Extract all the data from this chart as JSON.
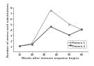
{
  "series": [
    {
      "label": "Patient 1",
      "x": [
        10,
        20,
        35,
        50,
        60
      ],
      "y": [
        1,
        1.5,
        7.5,
        5,
        4
      ],
      "marker": "o",
      "linestyle": "-",
      "color": "#aaaaaa",
      "markersize": 1.8,
      "linewidth": 0.7,
      "markerfacecolor": "#aaaaaa"
    },
    {
      "label": "Patient 2",
      "x": [
        10,
        20,
        35,
        50,
        60
      ],
      "y": [
        1,
        1.3,
        4.5,
        3,
        4
      ],
      "marker": "s",
      "linestyle": "-",
      "color": "#666666",
      "markersize": 1.8,
      "linewidth": 0.7,
      "markerfacecolor": "#666666"
    }
  ],
  "xlabel": "Weeks after immune response begins",
  "ylabel": "Number of amino acid substitutions",
  "xlim": [
    5,
    65
  ],
  "ylim": [
    0,
    8
  ],
  "xticks": [
    10,
    20,
    30,
    40,
    50,
    60
  ],
  "yticks": [
    1,
    2,
    3,
    4,
    5,
    6,
    7,
    8
  ],
  "legend_fontsize": 3.0,
  "xlabel_fontsize": 3.2,
  "ylabel_fontsize": 3.2,
  "tick_fontsize": 3.0,
  "background_color": "#ffffff"
}
